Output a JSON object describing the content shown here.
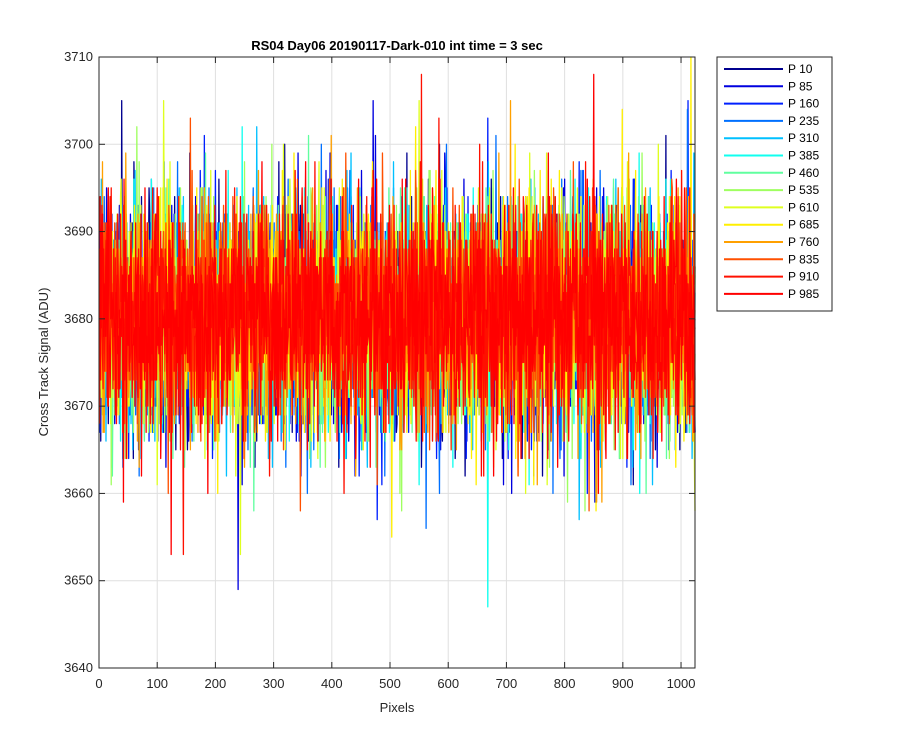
{
  "chart_data": {
    "type": "line",
    "title": "RS04 Day06 20190117-Dark-010 int time = 3 sec",
    "xlabel": "Pixels",
    "ylabel": "Cross Track Signal (ADU)",
    "xlim": [
      0,
      1024
    ],
    "ylim": [
      3640,
      3710
    ],
    "xticks": [
      0,
      100,
      200,
      300,
      400,
      500,
      600,
      700,
      800,
      900,
      1000
    ],
    "yticks": [
      3640,
      3650,
      3660,
      3670,
      3680,
      3690,
      3700,
      3710
    ],
    "grid": true,
    "legend_position": "outside-top-right",
    "n_points": 1024,
    "series": [
      {
        "name": "P 10",
        "color": "#00008f",
        "mean": 3679.5,
        "min": 3661,
        "max": 3705
      },
      {
        "name": "P 85",
        "color": "#0000df",
        "mean": 3679.6,
        "min": 3649,
        "max": 3705
      },
      {
        "name": "P 160",
        "color": "#0020ff",
        "mean": 3679.7,
        "min": 3657,
        "max": 3705
      },
      {
        "name": "P 235",
        "color": "#0070ff",
        "mean": 3679.8,
        "min": 3656,
        "max": 3704
      },
      {
        "name": "P 310",
        "color": "#00c0ff",
        "mean": 3679.9,
        "min": 3657,
        "max": 3702
      },
      {
        "name": "P 385",
        "color": "#10ffef",
        "mean": 3680.0,
        "min": 3647,
        "max": 3702
      },
      {
        "name": "P 460",
        "color": "#60ff9f",
        "mean": 3680.0,
        "min": 3658,
        "max": 3701
      },
      {
        "name": "P 535",
        "color": "#9fff60",
        "mean": 3680.1,
        "min": 3658,
        "max": 3702
      },
      {
        "name": "P 610",
        "color": "#dfff20",
        "mean": 3680.2,
        "min": 3653,
        "max": 3705
      },
      {
        "name": "P 685",
        "color": "#ffef00",
        "mean": 3680.3,
        "min": 3655,
        "max": 3710
      },
      {
        "name": "P 760",
        "color": "#ffa000",
        "mean": 3680.3,
        "min": 3659,
        "max": 3705
      },
      {
        "name": "P 835",
        "color": "#ff5000",
        "mean": 3680.4,
        "min": 3658,
        "max": 3703
      },
      {
        "name": "P 910",
        "color": "#ff1000",
        "mean": 3680.5,
        "min": 3653,
        "max": 3708
      },
      {
        "name": "P 985",
        "color": "#ff0000",
        "mean": 3680.6,
        "min": 3653,
        "max": 3708
      }
    ]
  }
}
